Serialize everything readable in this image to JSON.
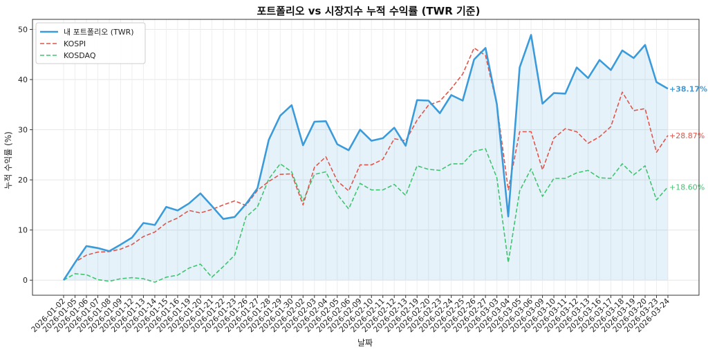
{
  "chart_data": {
    "type": "line",
    "title": "포트폴리오 vs 시장지수 누적 수익률 (TWR 기준)",
    "xlabel": "날짜",
    "ylabel": "누적 수익률 (%)",
    "ylim": [
      -3,
      52
    ],
    "yticks": [
      0,
      10,
      20,
      30,
      40,
      50
    ],
    "grid": true,
    "legend_position": "top-left",
    "categories": [
      "2026-01-02",
      "2026-01-05",
      "2026-01-06",
      "2026-01-07",
      "2026-01-08",
      "2026-01-09",
      "2026-01-12",
      "2026-01-13",
      "2026-01-14",
      "2026-01-15",
      "2026-01-16",
      "2026-01-19",
      "2026-01-20",
      "2026-01-21",
      "2026-01-22",
      "2026-01-23",
      "2026-01-26",
      "2026-01-27",
      "2026-01-28",
      "2026-01-29",
      "2026-01-30",
      "2026-02-02",
      "2026-02-03",
      "2026-02-04",
      "2026-02-05",
      "2026-02-06",
      "2026-02-09",
      "2026-02-10",
      "2026-02-11",
      "2026-02-12",
      "2026-02-13",
      "2026-02-19",
      "2026-02-20",
      "2026-02-23",
      "2026-02-24",
      "2026-02-25",
      "2026-02-26",
      "2026-02-27",
      "2026-03-03",
      "2026-03-04",
      "2026-03-05",
      "2026-03-06",
      "2026-03-09",
      "2026-03-10",
      "2026-03-11",
      "2026-03-12",
      "2026-03-13",
      "2026-03-16",
      "2026-03-17",
      "2026-03-18",
      "2026-03-19",
      "2026-03-20",
      "2026-03-23",
      "2026-03-24"
    ],
    "series": [
      {
        "name": "내 포트폴리오 (TWR)",
        "color": "#3b9ad9",
        "style": "solid",
        "fill": true,
        "end_label": "+38.17%",
        "values": [
          0,
          3.5,
          6.8,
          6.4,
          5.8,
          7.1,
          8.5,
          11.4,
          11.0,
          14.6,
          13.9,
          15.3,
          17.3,
          14.8,
          12.2,
          12.6,
          15.2,
          18.3,
          28.0,
          32.8,
          34.9,
          26.9,
          31.6,
          31.7,
          27.1,
          25.9,
          30.0,
          27.8,
          28.3,
          30.4,
          26.8,
          35.9,
          35.8,
          33.3,
          36.9,
          35.8,
          44.0,
          46.3,
          35.1,
          12.7,
          42.4,
          48.9,
          35.2,
          37.3,
          37.2,
          42.4,
          40.3,
          43.9,
          41.9,
          45.8,
          44.3,
          46.9,
          39.5,
          38.17
        ]
      },
      {
        "name": "KOSPI",
        "color": "#e0554a",
        "style": "dashed",
        "end_label": "+28.87%",
        "values": [
          0,
          3.6,
          5.0,
          5.6,
          5.7,
          6.2,
          7.1,
          8.7,
          9.6,
          11.4,
          12.4,
          13.9,
          13.4,
          14.1,
          15.0,
          15.8,
          14.9,
          17.9,
          19.7,
          21.1,
          21.2,
          15.0,
          22.5,
          24.6,
          19.8,
          17.8,
          23.0,
          23.0,
          24.1,
          28.2,
          27.8,
          31.9,
          34.9,
          35.7,
          38.2,
          41.1,
          46.3,
          44.8,
          35.0,
          18.0,
          29.6,
          29.6,
          22.0,
          28.3,
          30.2,
          29.6,
          27.3,
          28.6,
          30.6,
          37.5,
          33.8,
          34.2,
          25.5,
          28.87
        ]
      },
      {
        "name": "KOSDAQ",
        "color": "#3fc46f",
        "style": "dashed",
        "end_label": "+18.60%",
        "values": [
          0,
          1.3,
          1.1,
          0.1,
          -0.2,
          0.3,
          0.5,
          0.3,
          -0.4,
          0.6,
          1.0,
          2.4,
          3.2,
          0.6,
          2.7,
          5.0,
          12.6,
          14.6,
          20.2,
          23.2,
          21.6,
          15.8,
          21.1,
          21.6,
          17.1,
          14.2,
          19.3,
          18.0,
          18.0,
          19.1,
          16.9,
          22.8,
          22.1,
          21.9,
          23.2,
          23.2,
          25.7,
          26.2,
          20.4,
          3.5,
          17.8,
          22.2,
          16.7,
          20.3,
          20.3,
          21.4,
          21.9,
          20.4,
          20.3,
          23.2,
          21.0,
          22.8,
          16.0,
          18.6
        ]
      }
    ]
  }
}
